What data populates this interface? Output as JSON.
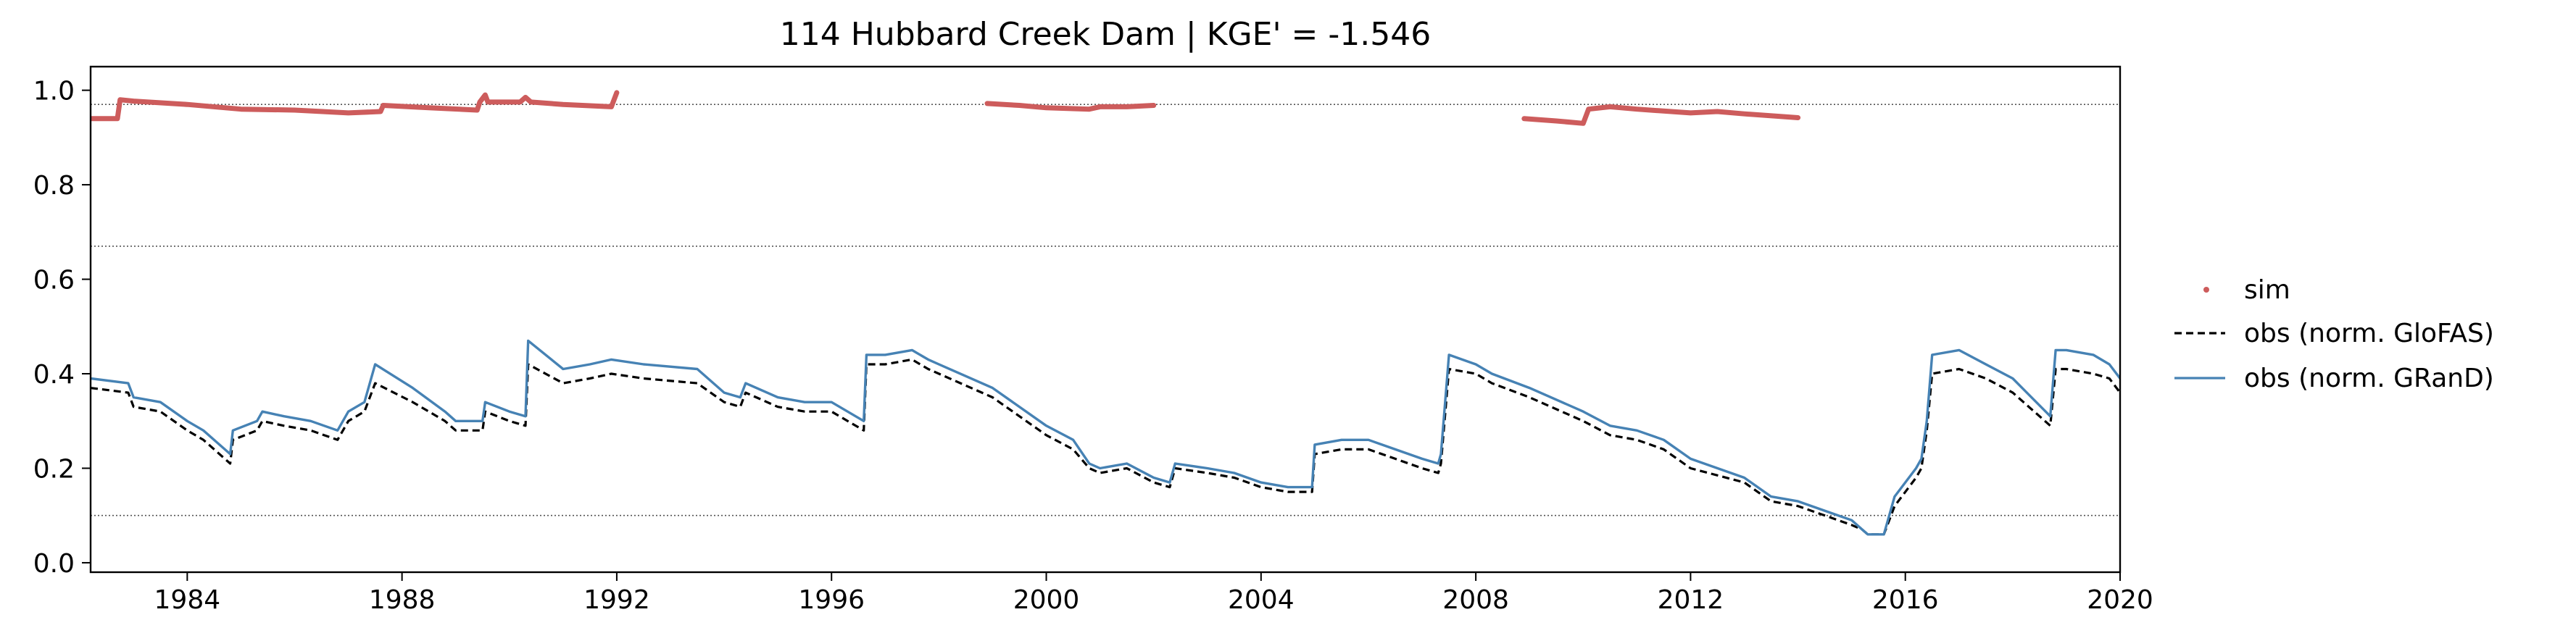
{
  "chart_data": {
    "type": "line",
    "title": "114  Hubbard Creek Dam | KGE' = -1.546",
    "xlim": [
      1982.2,
      2020.0
    ],
    "ylim": [
      -0.02,
      1.05
    ],
    "xticks": [
      1984,
      1988,
      1992,
      1996,
      2000,
      2004,
      2008,
      2012,
      2016,
      2020
    ],
    "yticks": [
      0.0,
      0.2,
      0.4,
      0.6,
      0.8,
      1.0
    ],
    "ytick_labels": [
      "0.0",
      "0.2",
      "0.4",
      "0.6",
      "0.8",
      "1.0"
    ],
    "reference_lines": [
      0.97,
      0.67,
      0.1
    ],
    "legend_position": "right",
    "colors": {
      "sim": "#cd5c5c",
      "glofas": "#000000",
      "grand": "#4682b4"
    },
    "series": [
      {
        "name": "sim",
        "style": "points",
        "segments": [
          [
            [
              1982.2,
              0.94
            ],
            [
              1982.7,
              0.94
            ],
            [
              1982.75,
              0.98
            ],
            [
              1983.0,
              0.977
            ],
            [
              1984.0,
              0.97
            ],
            [
              1985.0,
              0.96
            ],
            [
              1986.0,
              0.958
            ],
            [
              1987.0,
              0.952
            ],
            [
              1987.6,
              0.955
            ],
            [
              1987.65,
              0.968
            ],
            [
              1988.5,
              0.963
            ],
            [
              1989.4,
              0.958
            ],
            [
              1989.45,
              0.975
            ],
            [
              1989.55,
              0.99
            ],
            [
              1989.6,
              0.975
            ],
            [
              1990.2,
              0.975
            ],
            [
              1990.3,
              0.985
            ],
            [
              1990.4,
              0.975
            ],
            [
              1991.0,
              0.97
            ],
            [
              1991.9,
              0.965
            ],
            [
              1992.0,
              0.995
            ]
          ],
          [
            [
              1998.9,
              0.972
            ],
            [
              1999.5,
              0.968
            ],
            [
              2000.0,
              0.963
            ],
            [
              2000.8,
              0.96
            ],
            [
              2001.0,
              0.965
            ],
            [
              2001.5,
              0.965
            ],
            [
              2002.0,
              0.968
            ]
          ],
          [
            [
              2008.9,
              0.94
            ],
            [
              2009.5,
              0.935
            ],
            [
              2010.0,
              0.93
            ],
            [
              2010.1,
              0.96
            ],
            [
              2010.5,
              0.965
            ],
            [
              2011.0,
              0.96
            ],
            [
              2012.0,
              0.952
            ],
            [
              2012.5,
              0.955
            ],
            [
              2013.0,
              0.95
            ],
            [
              2014.0,
              0.942
            ]
          ]
        ]
      },
      {
        "name": "obs (norm. GloFAS)",
        "style": "dashed",
        "x": [
          1982.2,
          1982.9,
          1983.0,
          1983.5,
          1984.0,
          1984.3,
          1984.6,
          1984.8,
          1984.85,
          1985.3,
          1985.4,
          1985.8,
          1986.3,
          1986.8,
          1987.0,
          1987.3,
          1987.5,
          1988.2,
          1988.8,
          1989.0,
          1989.5,
          1989.55,
          1990.0,
          1990.3,
          1990.35,
          1991.0,
          1991.5,
          1991.9,
          1992.5,
          1993.5,
          1994.0,
          1994.3,
          1994.4,
          1995.0,
          1995.5,
          1996.0,
          1996.6,
          1996.65,
          1997.0,
          1997.5,
          1997.8,
          1998.0,
          1999.0,
          2000.0,
          2000.5,
          2000.8,
          2001.0,
          2001.5,
          2002.0,
          2002.3,
          2002.4,
          2003.0,
          2003.5,
          2004.0,
          2004.5,
          2004.95,
          2005.0,
          2005.5,
          2006.0,
          2006.5,
          2007.0,
          2007.3,
          2007.35,
          2007.5,
          2008.0,
          2008.3,
          2009.0,
          2010.0,
          2010.5,
          2011.0,
          2011.5,
          2012.0,
          2013.0,
          2013.5,
          2014.0,
          2015.0,
          2015.2,
          2015.3,
          2015.6,
          2015.8,
          2016.2,
          2016.3,
          2016.4,
          2016.5,
          2017.0,
          2017.5,
          2018.0,
          2018.7,
          2018.8,
          2019.0,
          2019.5,
          2019.8,
          2020.0
        ],
        "y": [
          0.37,
          0.36,
          0.33,
          0.32,
          0.28,
          0.26,
          0.23,
          0.21,
          0.26,
          0.28,
          0.3,
          0.29,
          0.28,
          0.26,
          0.3,
          0.32,
          0.38,
          0.34,
          0.3,
          0.28,
          0.28,
          0.32,
          0.3,
          0.29,
          0.42,
          0.38,
          0.39,
          0.4,
          0.39,
          0.38,
          0.34,
          0.33,
          0.36,
          0.33,
          0.32,
          0.32,
          0.28,
          0.42,
          0.42,
          0.43,
          0.41,
          0.4,
          0.35,
          0.27,
          0.24,
          0.2,
          0.19,
          0.2,
          0.17,
          0.16,
          0.2,
          0.19,
          0.18,
          0.16,
          0.15,
          0.15,
          0.23,
          0.24,
          0.24,
          0.22,
          0.2,
          0.19,
          0.21,
          0.41,
          0.4,
          0.38,
          0.35,
          0.3,
          0.27,
          0.26,
          0.24,
          0.2,
          0.17,
          0.13,
          0.12,
          0.08,
          0.07,
          0.06,
          0.06,
          0.12,
          0.18,
          0.2,
          0.28,
          0.4,
          0.41,
          0.39,
          0.36,
          0.29,
          0.41,
          0.41,
          0.4,
          0.39,
          0.36
        ]
      },
      {
        "name": "obs (norm. GRanD)",
        "style": "solid",
        "x": [
          1982.2,
          1982.9,
          1983.0,
          1983.5,
          1984.0,
          1984.3,
          1984.6,
          1984.8,
          1984.85,
          1985.3,
          1985.4,
          1985.8,
          1986.3,
          1986.8,
          1987.0,
          1987.3,
          1987.5,
          1988.2,
          1988.8,
          1989.0,
          1989.5,
          1989.55,
          1990.0,
          1990.3,
          1990.35,
          1991.0,
          1991.5,
          1991.9,
          1992.5,
          1993.5,
          1994.0,
          1994.3,
          1994.4,
          1995.0,
          1995.5,
          1996.0,
          1996.6,
          1996.65,
          1997.0,
          1997.5,
          1997.8,
          1998.0,
          1999.0,
          2000.0,
          2000.5,
          2000.8,
          2001.0,
          2001.5,
          2002.0,
          2002.3,
          2002.4,
          2003.0,
          2003.5,
          2004.0,
          2004.5,
          2004.95,
          2005.0,
          2005.5,
          2006.0,
          2006.5,
          2007.0,
          2007.3,
          2007.35,
          2007.5,
          2008.0,
          2008.3,
          2009.0,
          2010.0,
          2010.5,
          2011.0,
          2011.5,
          2012.0,
          2013.0,
          2013.5,
          2014.0,
          2015.0,
          2015.2,
          2015.3,
          2015.6,
          2015.8,
          2016.2,
          2016.3,
          2016.4,
          2016.5,
          2017.0,
          2017.5,
          2018.0,
          2018.7,
          2018.8,
          2019.0,
          2019.5,
          2019.8,
          2020.0
        ],
        "y": [
          0.39,
          0.38,
          0.35,
          0.34,
          0.3,
          0.28,
          0.25,
          0.23,
          0.28,
          0.3,
          0.32,
          0.31,
          0.3,
          0.28,
          0.32,
          0.34,
          0.42,
          0.37,
          0.32,
          0.3,
          0.3,
          0.34,
          0.32,
          0.31,
          0.47,
          0.41,
          0.42,
          0.43,
          0.42,
          0.41,
          0.36,
          0.35,
          0.38,
          0.35,
          0.34,
          0.34,
          0.3,
          0.44,
          0.44,
          0.45,
          0.43,
          0.42,
          0.37,
          0.29,
          0.26,
          0.21,
          0.2,
          0.21,
          0.18,
          0.17,
          0.21,
          0.2,
          0.19,
          0.17,
          0.16,
          0.16,
          0.25,
          0.26,
          0.26,
          0.24,
          0.22,
          0.21,
          0.23,
          0.44,
          0.42,
          0.4,
          0.37,
          0.32,
          0.29,
          0.28,
          0.26,
          0.22,
          0.18,
          0.14,
          0.13,
          0.09,
          0.07,
          0.06,
          0.06,
          0.14,
          0.2,
          0.22,
          0.3,
          0.44,
          0.45,
          0.42,
          0.39,
          0.31,
          0.45,
          0.45,
          0.44,
          0.42,
          0.39
        ]
      }
    ]
  }
}
